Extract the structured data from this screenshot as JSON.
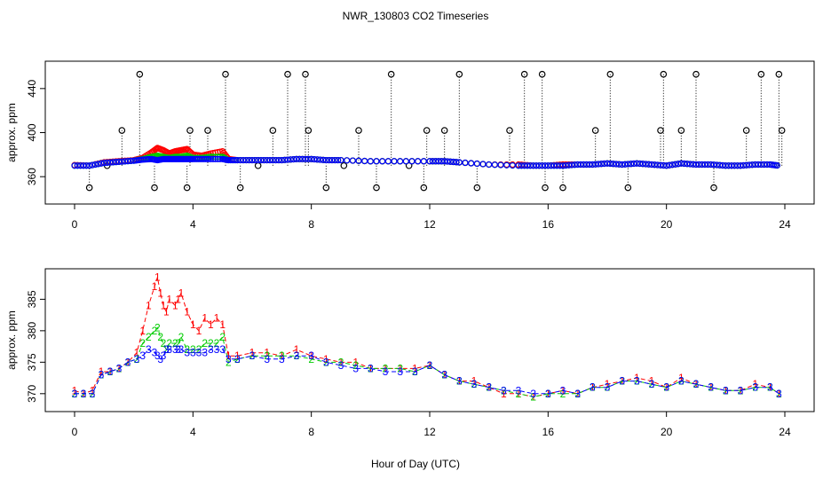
{
  "title": "NWR_130803  CO2 Timeseries",
  "xlabel": "Hour of Day (UTC)",
  "colors": {
    "series1": "#ff0000",
    "series2": "#00cc00",
    "series3": "#0000ff",
    "raw": "#000000",
    "cyan": "#00cccc"
  },
  "chart_data": [
    {
      "type": "scatter",
      "name": "top-panel",
      "ylabel": "approx. ppm",
      "xlim": [
        0,
        24
      ],
      "ylim": [
        340,
        460
      ],
      "x_ticks": [
        0,
        4,
        8,
        12,
        16,
        20,
        24
      ],
      "x_tick_labels": [
        "0",
        "4",
        "8",
        "12",
        "16",
        "20",
        "24"
      ],
      "y_ticks": [
        360,
        400,
        440
      ],
      "y_tick_labels": [
        "360",
        "400",
        "440"
      ],
      "series": [
        {
          "name": "1",
          "color": "#ff0000",
          "x": [
            0,
            0.5,
            1,
            1.5,
            2,
            2.3,
            2.6,
            2.8,
            3,
            3.2,
            3.4,
            3.6,
            3.8,
            4,
            4.3,
            4.6,
            5,
            5.2,
            5.5,
            6,
            6.5,
            7,
            7.5,
            8,
            8.5,
            9,
            10,
            11,
            12,
            12.5,
            13,
            14,
            15,
            15.5,
            16,
            16.5,
            17,
            17.5,
            18,
            18.5,
            19,
            19.5,
            20,
            20.5,
            21,
            21.5,
            22,
            22.5,
            23,
            23.5,
            23.8
          ],
          "y": [
            370.5,
            370,
            373,
            374,
            375,
            377,
            382,
            386,
            384,
            381,
            383,
            384,
            385,
            380,
            379,
            381,
            383,
            376,
            375,
            375,
            375,
            375,
            376,
            376,
            375,
            375,
            374,
            374,
            374,
            374,
            373,
            371,
            371,
            370,
            370,
            371,
            371,
            371,
            372,
            371,
            372,
            371,
            370,
            372,
            371,
            371,
            370,
            370,
            371,
            371,
            370
          ]
        },
        {
          "name": "2",
          "color": "#00cc00",
          "x": [
            0,
            0.5,
            1,
            1.5,
            2,
            2.3,
            2.6,
            2.8,
            3,
            3.2,
            3.4,
            3.6,
            3.8,
            4,
            4.3,
            4.6,
            5,
            5.2,
            5.5,
            6,
            6.5,
            7,
            7.5,
            8,
            8.5,
            9,
            10,
            11,
            12,
            12.5,
            13,
            14,
            15,
            15.5,
            16,
            16.5,
            17,
            17.5,
            18,
            18.5,
            19,
            19.5,
            20,
            20.5,
            21,
            21.5,
            22,
            22.5,
            23,
            23.5,
            23.8
          ],
          "y": [
            370,
            370,
            372.5,
            373.5,
            374.5,
            376,
            378,
            379,
            378,
            377,
            378,
            378,
            379,
            377,
            377,
            378,
            378,
            375,
            375,
            375,
            375,
            375,
            376,
            376,
            375,
            375,
            374,
            374,
            374,
            374,
            373,
            371,
            370,
            370,
            370,
            370,
            371,
            371,
            372,
            371,
            372,
            371,
            370,
            372,
            371,
            371,
            370,
            370,
            371,
            371,
            370
          ]
        },
        {
          "name": "3",
          "color": "#0000ff",
          "x": [
            0,
            0.5,
            1,
            1.5,
            2,
            2.3,
            2.6,
            2.8,
            3,
            3.2,
            3.4,
            3.6,
            3.8,
            4,
            4.3,
            4.6,
            5,
            5.2,
            5.5,
            6,
            6.5,
            7,
            7.5,
            8,
            8.5,
            9,
            10,
            11,
            12,
            12.5,
            13,
            14,
            15,
            15.5,
            16,
            16.5,
            17,
            17.5,
            18,
            18.5,
            19,
            19.5,
            20,
            20.5,
            21,
            21.5,
            22,
            22.5,
            23,
            23.5,
            23.8
          ],
          "y": [
            370,
            370,
            372.5,
            373.5,
            374.5,
            375.5,
            376,
            375,
            376,
            376,
            376,
            376,
            376,
            376,
            376,
            376,
            376,
            375,
            375,
            375,
            375,
            375,
            376,
            376,
            375,
            375,
            374,
            374,
            374,
            374,
            373,
            371,
            370,
            370,
            370,
            370,
            371,
            371,
            372,
            371,
            372,
            371,
            370,
            372,
            371,
            371,
            370,
            370,
            371,
            371,
            370
          ]
        }
      ],
      "spikes_x": [
        0.5,
        1.1,
        1.6,
        2.2,
        2.7,
        3.8,
        3.9,
        4.5,
        5.1,
        5.6,
        6.2,
        6.7,
        7.2,
        7.8,
        7.9,
        8.5,
        9.1,
        9.6,
        10.2,
        10.7,
        11.3,
        11.8,
        11.9,
        12.5,
        13.0,
        13.6,
        14.7,
        15.2,
        15.8,
        15.9,
        16.5,
        17.6,
        18.1,
        18.7,
        19.8,
        19.9,
        20.5,
        21.0,
        21.6,
        22.7,
        23.2,
        23.8,
        23.9
      ],
      "spikes_y": [
        350,
        370,
        402,
        453,
        350,
        350,
        402,
        402,
        453,
        350,
        370,
        402,
        453,
        453,
        402,
        350,
        370,
        402,
        350,
        453,
        370,
        350,
        402,
        402,
        453,
        350,
        402,
        453,
        453,
        350,
        350,
        402,
        453,
        350,
        402,
        453,
        402,
        453,
        350,
        402,
        453,
        453,
        402
      ],
      "spike_base": 370
    },
    {
      "type": "line",
      "name": "bottom-panel",
      "ylabel": "approx. ppm",
      "xlim": [
        0,
        24
      ],
      "ylim": [
        368,
        389
      ],
      "x_ticks": [
        0,
        4,
        8,
        12,
        16,
        20,
        24
      ],
      "x_tick_labels": [
        "0",
        "4",
        "8",
        "12",
        "16",
        "20",
        "24"
      ],
      "y_ticks": [
        370,
        375,
        380,
        385
      ],
      "y_tick_labels": [
        "370",
        "375",
        "380",
        "385"
      ],
      "series": [
        {
          "name": "1",
          "color": "#ff0000",
          "x": [
            0,
            0.3,
            0.6,
            0.9,
            1.2,
            1.5,
            1.8,
            2.1,
            2.3,
            2.5,
            2.7,
            2.8,
            2.9,
            3.0,
            3.1,
            3.2,
            3.4,
            3.5,
            3.6,
            3.8,
            4.0,
            4.2,
            4.4,
            4.6,
            4.8,
            5.0,
            5.2,
            5.5,
            6,
            6.5,
            7,
            7.5,
            8,
            8.5,
            9,
            9.5,
            10,
            10.5,
            11,
            11.5,
            12,
            12.5,
            13,
            13.5,
            14,
            14.5,
            15,
            15.5,
            16,
            16.5,
            17,
            17.5,
            18,
            18.5,
            19,
            19.5,
            20,
            20.5,
            21,
            21.5,
            22,
            22.5,
            23,
            23.5,
            23.8
          ],
          "y": [
            370.5,
            370,
            370.5,
            373.5,
            373.5,
            374,
            375,
            376.5,
            380,
            384,
            387,
            388.5,
            386,
            384,
            383,
            385,
            384,
            385,
            386,
            383,
            381,
            380,
            382,
            381,
            382,
            381,
            376,
            376,
            376.5,
            376.5,
            376,
            377,
            376,
            375.5,
            375,
            375,
            374,
            374,
            374,
            374,
            374.5,
            373,
            372,
            372,
            371,
            370,
            370,
            369.5,
            370,
            370.5,
            370,
            371,
            371.5,
            372,
            372.5,
            372,
            371,
            372.5,
            371.5,
            371,
            370.5,
            370.5,
            371.5,
            371,
            370
          ]
        },
        {
          "name": "2",
          "color": "#00cc00",
          "x": [
            0,
            0.3,
            0.6,
            0.9,
            1.2,
            1.5,
            1.8,
            2.1,
            2.3,
            2.5,
            2.7,
            2.8,
            2.9,
            3.0,
            3.1,
            3.2,
            3.4,
            3.5,
            3.6,
            3.8,
            4.0,
            4.2,
            4.4,
            4.6,
            4.8,
            5.0,
            5.2,
            5.5,
            6,
            6.5,
            7,
            7.5,
            8,
            8.5,
            9,
            9.5,
            10,
            10.5,
            11,
            11.5,
            12,
            12.5,
            13,
            13.5,
            14,
            14.5,
            15,
            15.5,
            16,
            16.5,
            17,
            17.5,
            18,
            18.5,
            19,
            19.5,
            20,
            20.5,
            21,
            21.5,
            22,
            22.5,
            23,
            23.5,
            23.8
          ],
          "y": [
            370,
            370,
            370,
            373,
            373.5,
            374,
            375,
            375.5,
            378,
            379,
            380,
            380.5,
            379,
            378,
            377,
            378,
            378,
            378,
            379,
            377,
            377,
            377,
            378,
            378,
            378,
            379,
            375,
            375.5,
            376,
            376,
            376,
            376,
            375.5,
            375,
            375,
            374.5,
            374,
            374,
            374,
            373.5,
            374.5,
            373,
            372,
            371.5,
            371,
            370.5,
            370,
            369.5,
            370,
            370,
            370,
            371,
            371,
            372,
            372,
            371.5,
            371,
            372,
            371.5,
            371,
            370.5,
            370.5,
            371,
            371,
            370
          ]
        },
        {
          "name": "3",
          "color": "#0000ff",
          "x": [
            0,
            0.3,
            0.6,
            0.9,
            1.2,
            1.5,
            1.8,
            2.1,
            2.3,
            2.5,
            2.7,
            2.8,
            2.9,
            3.0,
            3.1,
            3.2,
            3.4,
            3.5,
            3.6,
            3.8,
            4.0,
            4.2,
            4.4,
            4.6,
            4.8,
            5.0,
            5.2,
            5.5,
            6,
            6.5,
            7,
            7.5,
            8,
            8.5,
            9,
            9.5,
            10,
            10.5,
            11,
            11.5,
            12,
            12.5,
            13,
            13.5,
            14,
            14.5,
            15,
            15.5,
            16,
            16.5,
            17,
            17.5,
            18,
            18.5,
            19,
            19.5,
            20,
            20.5,
            21,
            21.5,
            22,
            22.5,
            23,
            23.5,
            23.8
          ],
          "y": [
            370,
            370,
            370,
            373,
            373.5,
            374,
            375,
            375.5,
            376,
            377,
            376.5,
            376,
            375.5,
            376,
            377,
            377,
            377,
            377,
            377,
            376.5,
            376.5,
            376.5,
            376.5,
            377,
            377,
            377,
            375.5,
            375.5,
            376,
            375.5,
            375.5,
            376,
            376,
            375,
            374.5,
            374,
            374,
            373.5,
            373.5,
            373.5,
            374.5,
            373,
            372,
            371.5,
            371,
            370.5,
            370.5,
            370,
            370,
            370.5,
            370,
            371,
            371,
            372,
            372,
            371.5,
            371,
            372,
            371.5,
            371,
            370.5,
            370.5,
            371,
            371,
            370
          ]
        }
      ]
    }
  ]
}
